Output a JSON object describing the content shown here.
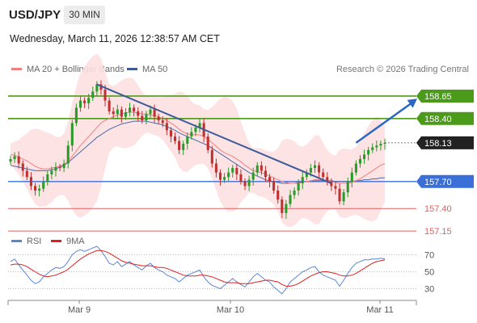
{
  "header": {
    "symbol": "USD/JPY",
    "timeframe": "30 MIN",
    "datetime": "Wednesday, March 11, 2026 12:38:57 AM CET"
  },
  "legend": {
    "ma20_label": "MA 20 + Bollinger Bands",
    "ma50_label": "MA 50",
    "credit": "Research © 2026 Trading Central",
    "rsi_label": "RSI",
    "rsi_ma_label": "9MA"
  },
  "colors": {
    "ma20": "#f08080",
    "bollinger_fill": "#fde0e0",
    "ma50": "#4a6aa8",
    "trendline": "#3d5a99",
    "resistance": "#4c9a1a",
    "pivot": "#3a6fd8",
    "support": "#e06060",
    "last_price": "#222222",
    "arrow": "#2d67c4",
    "candle_up": "#2a9a2a",
    "candle_down": "#c03030",
    "rsi": "#5b86d6",
    "rsi_ma": "#e02020"
  },
  "chart_data": [
    {
      "type": "candlestick",
      "title": "USD/JPY 30 MIN",
      "x_ticks": [
        "Mar 9",
        "Mar 10",
        "Mar 11"
      ],
      "ylim": [
        157.07,
        158.82
      ],
      "levels": [
        {
          "label": "158.65",
          "value": 158.65,
          "kind": "resistance"
        },
        {
          "label": "158.40",
          "value": 158.4,
          "kind": "resistance"
        },
        {
          "label": "158.13",
          "value": 158.13,
          "kind": "last"
        },
        {
          "label": "157.70",
          "value": 157.7,
          "kind": "pivot"
        },
        {
          "label": "157.40",
          "value": 157.4,
          "kind": "support"
        },
        {
          "label": "157.15",
          "value": 157.15,
          "kind": "support"
        }
      ],
      "closes": [
        157.95,
        157.98,
        157.9,
        157.82,
        157.75,
        157.65,
        157.6,
        157.62,
        157.7,
        157.78,
        157.82,
        157.86,
        157.85,
        157.9,
        158.1,
        158.35,
        158.52,
        158.6,
        158.57,
        158.63,
        158.7,
        158.78,
        158.72,
        158.6,
        158.48,
        158.45,
        158.5,
        158.42,
        158.47,
        158.52,
        158.48,
        158.43,
        158.38,
        158.45,
        158.5,
        158.42,
        158.38,
        158.35,
        158.27,
        158.2,
        158.15,
        158.05,
        158.12,
        158.2,
        158.25,
        158.3,
        158.35,
        158.2,
        158.05,
        157.9,
        157.8,
        157.72,
        157.75,
        157.8,
        157.85,
        157.78,
        157.7,
        157.65,
        157.72,
        157.8,
        157.88,
        157.82,
        157.75,
        157.7,
        157.6,
        157.5,
        157.35,
        157.45,
        157.55,
        157.6,
        157.68,
        157.75,
        157.8,
        157.85,
        157.88,
        157.8,
        157.75,
        157.7,
        157.65,
        157.62,
        157.48,
        157.58,
        157.7,
        157.8,
        157.9,
        157.95,
        158.0,
        158.05,
        158.08,
        158.1,
        158.12,
        158.13
      ],
      "ma20": [
        158.0,
        157.99,
        157.97,
        157.95,
        157.93,
        157.9,
        157.87,
        157.85,
        157.84,
        157.84,
        157.85,
        157.86,
        157.87,
        157.89,
        157.93,
        157.98,
        158.04,
        158.1,
        158.15,
        158.2,
        158.25,
        158.3,
        158.35,
        158.38,
        158.4,
        158.42,
        158.44,
        158.45,
        158.46,
        158.47,
        158.47,
        158.46,
        158.45,
        158.45,
        158.44,
        158.43,
        158.42,
        158.4,
        158.38,
        158.35,
        158.32,
        158.28,
        158.25,
        158.23,
        158.22,
        158.22,
        158.22,
        158.2,
        158.17,
        158.13,
        158.09,
        158.05,
        158.02,
        158.0,
        157.98,
        157.95,
        157.92,
        157.88,
        157.85,
        157.82,
        157.81,
        157.8,
        157.78,
        157.76,
        157.74,
        157.72,
        157.7,
        157.69,
        157.68,
        157.68,
        157.68,
        157.69,
        157.7,
        157.71,
        157.72,
        157.72,
        157.72,
        157.71,
        157.7,
        157.69,
        157.68,
        157.68,
        157.68,
        157.69,
        157.71,
        157.73,
        157.76,
        157.79,
        157.82,
        157.85,
        157.88,
        157.9
      ],
      "ma50": [
        157.88,
        157.87,
        157.86,
        157.85,
        157.84,
        157.83,
        157.82,
        157.82,
        157.82,
        157.82,
        157.83,
        157.84,
        157.86,
        157.88,
        157.91,
        157.95,
        157.99,
        158.03,
        158.07,
        158.11,
        158.15,
        158.19,
        158.22,
        158.25,
        158.28,
        158.3,
        158.32,
        158.34,
        158.35,
        158.36,
        158.37,
        158.37,
        158.37,
        158.37,
        158.36,
        158.35,
        158.34,
        158.33,
        158.31,
        158.29,
        158.27,
        158.24,
        158.22,
        158.2,
        158.18,
        158.16,
        158.14,
        158.12,
        158.1,
        158.07,
        158.04,
        158.01,
        157.98,
        157.95,
        157.92,
        157.89,
        157.86,
        157.83,
        157.8,
        157.78,
        157.76,
        157.74,
        157.72,
        157.71,
        157.7,
        157.69,
        157.68,
        157.68,
        157.68,
        157.68,
        157.69,
        157.69,
        157.7,
        157.7,
        157.71,
        157.71,
        157.71,
        157.71,
        157.71,
        157.7,
        157.7,
        157.7,
        157.7,
        157.7,
        157.71,
        157.71,
        157.72,
        157.72,
        157.73,
        157.73,
        157.74,
        157.74
      ],
      "trendline": {
        "from": {
          "index": 21,
          "value": 158.78
        },
        "to": {
          "index": 78,
          "value": 157.68
        }
      },
      "arrow": {
        "from": {
          "index": 84,
          "value": 158.13
        },
        "to": {
          "index": 91,
          "value": 158.62
        }
      }
    },
    {
      "type": "line",
      "title": "RSI",
      "yticks": [
        70,
        50,
        30
      ],
      "ylim": [
        20,
        80
      ],
      "series": [
        {
          "name": "RSI",
          "values": [
            62,
            65,
            58,
            52,
            46,
            40,
            36,
            38,
            44,
            48,
            52,
            55,
            54,
            56,
            62,
            70,
            74,
            76,
            74,
            76,
            78,
            80,
            75,
            68,
            60,
            58,
            62,
            56,
            59,
            62,
            58,
            55,
            52,
            57,
            60,
            55,
            52,
            50,
            46,
            44,
            42,
            38,
            42,
            46,
            48,
            50,
            52,
            44,
            38,
            34,
            32,
            30,
            34,
            38,
            42,
            38,
            35,
            32,
            38,
            44,
            48,
            44,
            40,
            38,
            32,
            28,
            24,
            30,
            38,
            42,
            46,
            50,
            52,
            55,
            56,
            50,
            46,
            44,
            42,
            40,
            33,
            40,
            48,
            55,
            60,
            62,
            64,
            64,
            65,
            65,
            66,
            65
          ]
        },
        {
          "name": "9MA",
          "values": [
            58,
            59,
            59,
            58,
            56,
            53,
            50,
            47,
            45,
            44,
            45,
            46,
            48,
            50,
            53,
            57,
            61,
            65,
            68,
            71,
            73,
            75,
            75,
            74,
            72,
            69,
            66,
            63,
            61,
            60,
            59,
            58,
            57,
            57,
            57,
            56,
            55,
            55,
            54,
            52,
            50,
            48,
            46,
            45,
            45,
            45,
            46,
            46,
            45,
            44,
            42,
            40,
            38,
            37,
            37,
            37,
            36,
            36,
            36,
            37,
            38,
            39,
            40,
            40,
            39,
            38,
            35,
            33,
            33,
            34,
            36,
            39,
            42,
            45,
            47,
            49,
            50,
            50,
            49,
            48,
            46,
            45,
            45,
            46,
            48,
            51,
            54,
            57,
            60,
            62,
            63,
            64
          ]
        }
      ]
    }
  ]
}
